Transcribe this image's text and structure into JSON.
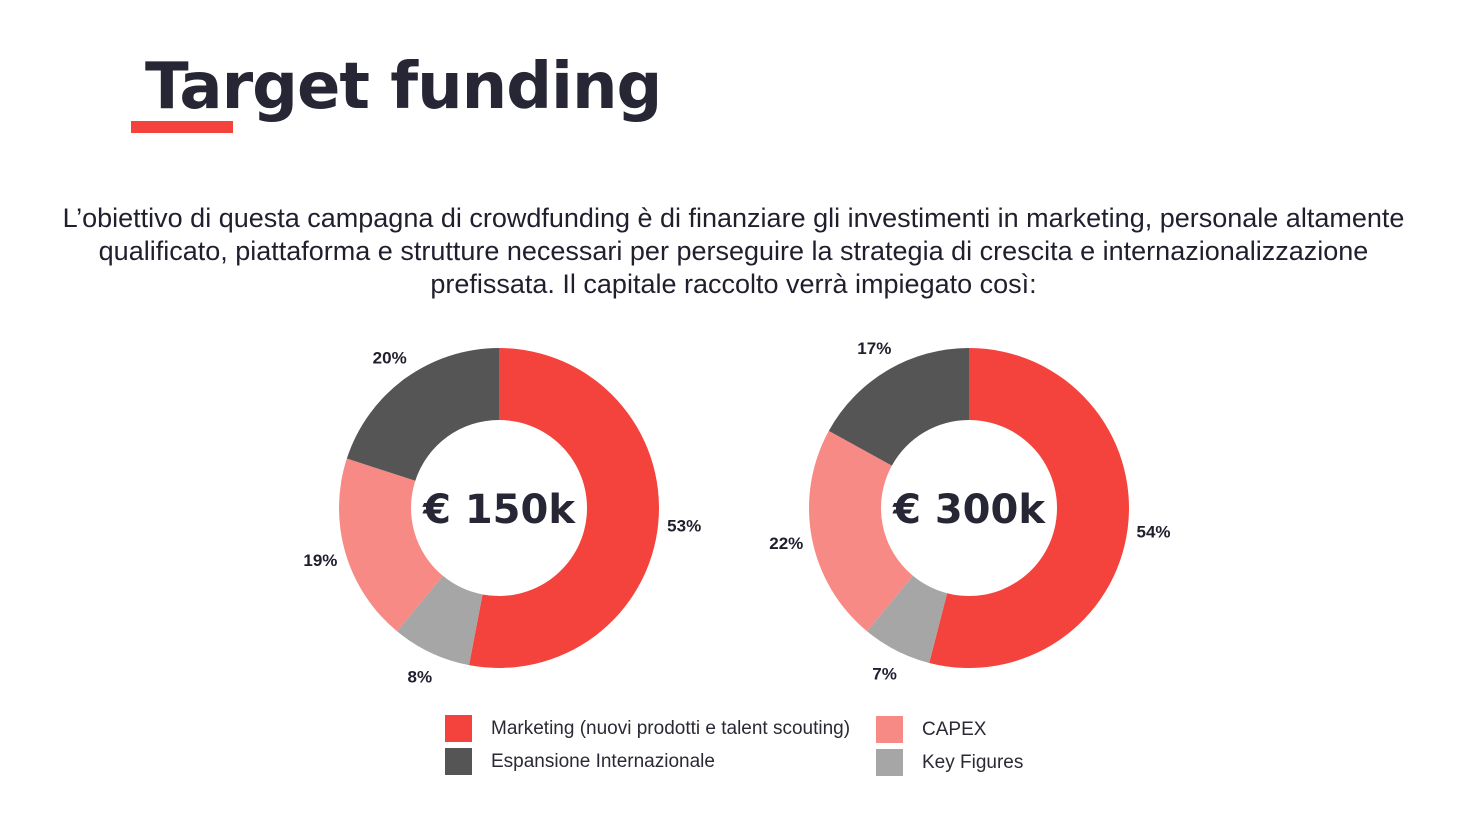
{
  "title": "Target funding",
  "intro": "L’obiettivo di questa campagna di crowdfunding è di finanziare gli investimenti in marketing, personale altamente qualificato, piattaforma e strutture necessari per perseguire la strategia di crescita e internazionalizzazione prefissata. Il capitale raccolto verrà impiegato così:",
  "colors": {
    "accent": "#f4433c",
    "title": "#262635",
    "marketing": "#f4433c",
    "capex": "#f78a85",
    "key_figures": "#a6a6a6",
    "espansione": "#555555"
  },
  "chart_data": [
    {
      "type": "pie",
      "style": "donut",
      "center_label": "€ 150k",
      "slices": [
        {
          "category": "Marketing (nuovi prodotti e talent scouting)",
          "value": 53,
          "label": "53%"
        },
        {
          "category": "Key Figures",
          "value": 8,
          "label": "8%"
        },
        {
          "category": "CAPEX",
          "value": 19,
          "label": "19%"
        },
        {
          "category": "Espansione Internazionale",
          "value": 20,
          "label": "20%"
        }
      ]
    },
    {
      "type": "pie",
      "style": "donut",
      "center_label": "€ 300k",
      "slices": [
        {
          "category": "Marketing (nuovi prodotti e talent scouting)",
          "value": 54,
          "label": "54%"
        },
        {
          "category": "Key Figures",
          "value": 7,
          "label": "7%"
        },
        {
          "category": "CAPEX",
          "value": 22,
          "label": "22%"
        },
        {
          "category": "Espansione Internazionale",
          "value": 17,
          "label": "17%"
        }
      ]
    }
  ],
  "legend": {
    "placement": "bottom",
    "items": [
      {
        "label": "Marketing (nuovi prodotti e talent scouting)",
        "color": "#f4433c"
      },
      {
        "label": "Espansione Internazionale",
        "color": "#555555"
      },
      {
        "label": "CAPEX",
        "color": "#f78a85"
      },
      {
        "label": "Key Figures",
        "color": "#a6a6a6"
      }
    ]
  }
}
